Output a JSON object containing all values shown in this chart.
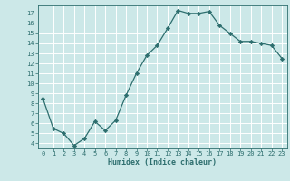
{
  "x": [
    0,
    1,
    2,
    3,
    4,
    5,
    6,
    7,
    8,
    9,
    10,
    11,
    12,
    13,
    14,
    15,
    16,
    17,
    18,
    19,
    20,
    21,
    22,
    23
  ],
  "y": [
    8.5,
    5.5,
    5.0,
    3.8,
    4.5,
    6.2,
    5.3,
    6.3,
    8.8,
    11.0,
    12.8,
    13.8,
    15.5,
    17.3,
    17.0,
    17.0,
    17.2,
    15.8,
    15.0,
    14.2,
    14.2,
    14.0,
    13.8,
    12.5
  ],
  "xlim": [
    -0.5,
    23.5
  ],
  "ylim": [
    3.5,
    17.8
  ],
  "yticks": [
    4,
    5,
    6,
    7,
    8,
    9,
    10,
    11,
    12,
    13,
    14,
    15,
    16,
    17
  ],
  "xticks": [
    0,
    1,
    2,
    3,
    4,
    5,
    6,
    7,
    8,
    9,
    10,
    11,
    12,
    13,
    14,
    15,
    16,
    17,
    18,
    19,
    20,
    21,
    22,
    23
  ],
  "xlabel": "Humidex (Indice chaleur)",
  "line_color": "#2d6e6e",
  "marker_color": "#2d6e6e",
  "bg_color": "#cce8e8",
  "grid_color": "#ffffff"
}
